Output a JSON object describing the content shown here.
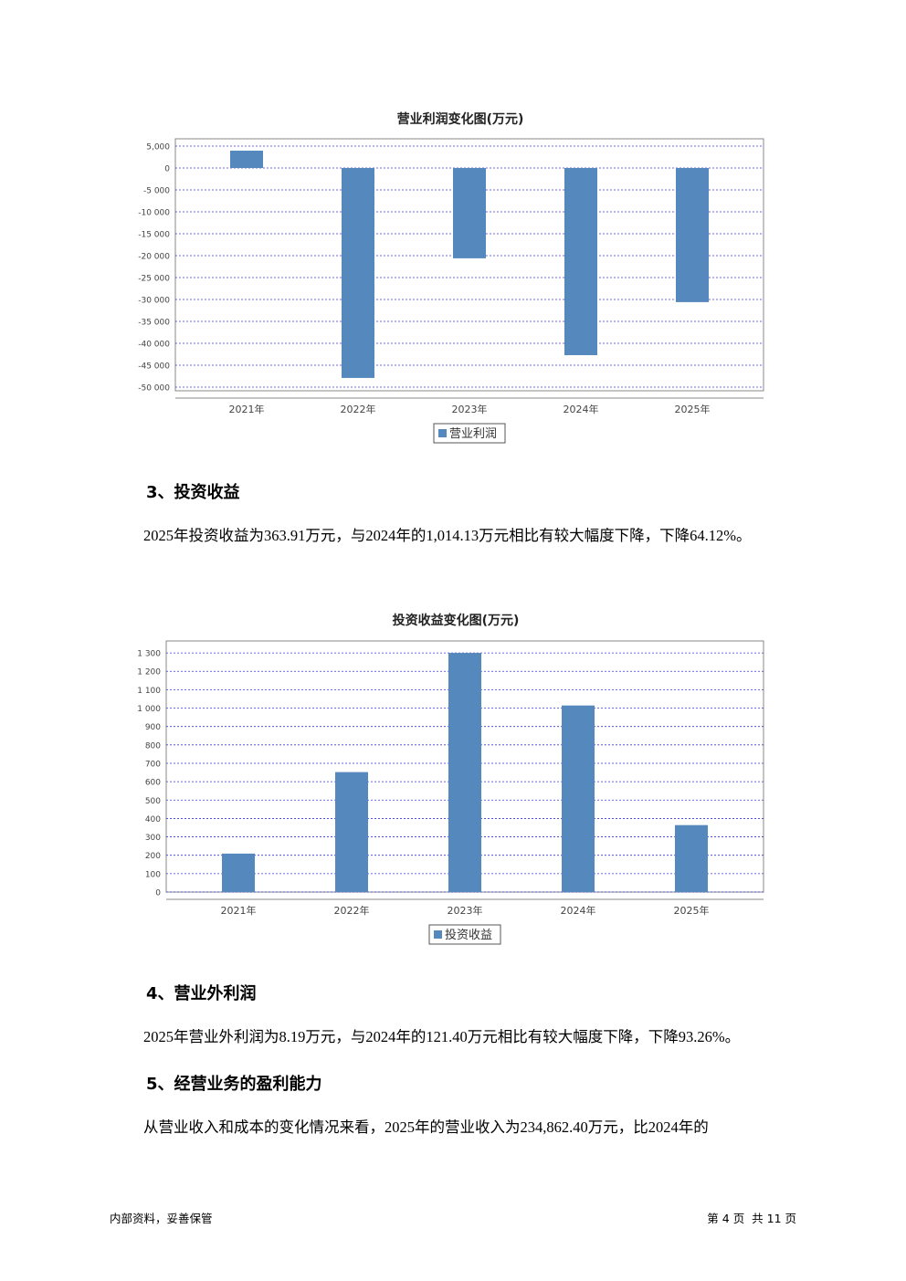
{
  "chart_data": [
    {
      "type": "bar",
      "title": "营业利润变化图(万元)",
      "categories": [
        "2021年",
        "2022年",
        "2023年",
        "2024年",
        "2025年"
      ],
      "series": [
        {
          "name": "营业利润",
          "color": "#5589bd",
          "values": [
            3960,
            -47900,
            -20600,
            -42700,
            -30600
          ]
        }
      ],
      "ylim": [
        -50830,
        6670
      ],
      "yticks": [
        {
          "value": 5000,
          "label": "5,000"
        },
        0,
        {
          "value": -5000,
          "label": "-5 000"
        },
        {
          "value": -10000,
          "label": "-10 000"
        },
        {
          "value": -15000,
          "label": "-15 000"
        },
        {
          "value": -20000,
          "label": "-20 000"
        },
        {
          "value": -25000,
          "label": "-25 000"
        },
        {
          "value": -30000,
          "label": "-30 000"
        },
        {
          "value": -35000,
          "label": "-35 000"
        },
        {
          "value": -40000,
          "label": "-40 000"
        },
        {
          "value": -45000,
          "label": "-45 000"
        },
        {
          "value": -50000,
          "label": "-50 000"
        }
      ],
      "grid": true,
      "legend": "bottom"
    },
    {
      "type": "bar",
      "title": "投资收益变化图(万元)",
      "categories": [
        "2021年",
        "2022年",
        "2023年",
        "2024年",
        "2025年"
      ],
      "series": [
        {
          "name": "投资收益",
          "color": "#5589bd",
          "values": [
            209,
            652,
            1300,
            1014.13,
            363.91
          ]
        }
      ],
      "ylim": [
        0,
        1365
      ],
      "yticks": [
        {
          "value": 1300,
          "label": "1 300"
        },
        {
          "value": 1200,
          "label": "1 200"
        },
        {
          "value": 1100,
          "label": "1 100"
        },
        {
          "value": 1000,
          "label": "1 000"
        },
        900,
        800,
        700,
        600,
        500,
        400,
        300,
        200,
        100,
        0
      ],
      "grid": true,
      "legend": "bottom"
    }
  ],
  "sections": [
    {
      "heading": "3、投资收益",
      "text": "2025年投资收益为363.91万元，与2024年的1,014.13万元相比有较大幅度下降，下降64.12%。"
    },
    {
      "heading": "4、营业外利润",
      "text": "2025年营业外利润为8.19万元，与2024年的121.40万元相比有较大幅度下降，下降93.26%。"
    },
    {
      "heading": "5、经营业务的盈利能力",
      "text": "从营业收入和成本的变化情况来看，2025年的营业收入为234,862.40万元，比2024年的"
    }
  ],
  "footer": {
    "left": "内部资料，妥善保管",
    "right": "第 4 页  共 11 页"
  }
}
